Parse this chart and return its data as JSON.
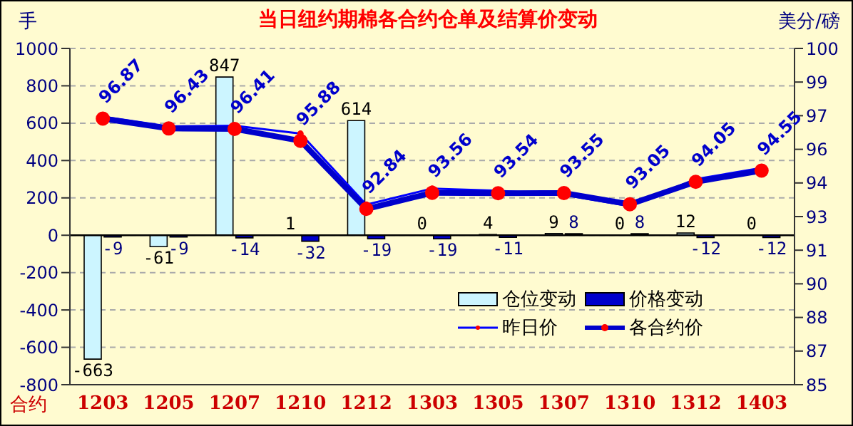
{
  "chart_data": {
    "type": "bar",
    "title": "当日纽约期棉各合约仓单及结算价变动",
    "xlabel": "合约",
    "ylabel": "手",
    "y2label": "美分/磅",
    "categories": [
      "1203",
      "1205",
      "1207",
      "1210",
      "1212",
      "1303",
      "1305",
      "1307",
      "1310",
      "1312",
      "1403"
    ],
    "series": [
      {
        "name": "仓位变动",
        "color": "#ccf5ff",
        "data_labels": true,
        "values": [
          -663,
          -61,
          847,
          1,
          614,
          0,
          4,
          9,
          0,
          12,
          0
        ]
      },
      {
        "name": "价格变动",
        "color": "#0000cc",
        "data_labels": true,
        "values": [
          -9,
          -9,
          -14,
          -32,
          -19,
          -19,
          -11,
          8,
          8,
          -12,
          -12
        ]
      },
      {
        "name": "昨日价",
        "type": "line",
        "axis": "y2",
        "color": "#0000ff",
        "values": [
          96.96,
          96.52,
          96.55,
          96.2,
          93.03,
          93.75,
          93.65,
          93.47,
          92.97,
          94.17,
          94.67
        ]
      },
      {
        "name": "各合约价",
        "type": "line",
        "axis": "y2",
        "color": "#0000cc",
        "data_labels": true,
        "values": [
          96.87,
          96.43,
          96.41,
          95.88,
          92.84,
          93.56,
          93.54,
          93.55,
          93.05,
          94.05,
          94.55
        ]
      }
    ],
    "ylim": [
      -800,
      1000
    ],
    "yticks": [
      -800,
      -600,
      -400,
      -200,
      0,
      200,
      400,
      600,
      800,
      1000
    ],
    "y2lim": [
      85,
      100
    ],
    "y2ticks": [
      85,
      {
        "value": 86.5,
        "label": "87"
      },
      88,
      {
        "value": 89.5,
        "label": "90"
      },
      91,
      {
        "value": 92.5,
        "label": "93"
      },
      94,
      {
        "value": 95.5,
        "label": "96"
      },
      97,
      {
        "value": 98.5,
        "label": "99"
      },
      100
    ],
    "grid": "y",
    "legend": "bottom right",
    "marker": "circle"
  }
}
